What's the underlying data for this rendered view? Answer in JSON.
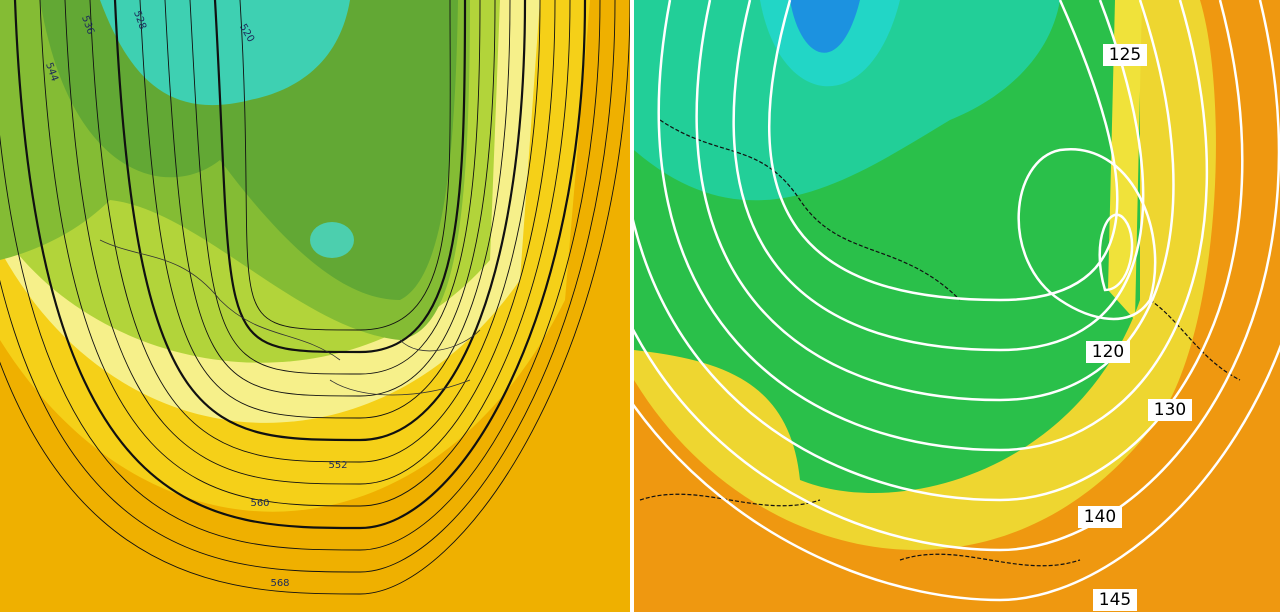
{
  "left_map": {
    "contour_labels": [
      "544",
      "536",
      "528",
      "520",
      "552",
      "560",
      "568"
    ]
  },
  "right_map": {
    "contour_labels": [
      "125",
      "120",
      "130",
      "140",
      "145"
    ]
  }
}
